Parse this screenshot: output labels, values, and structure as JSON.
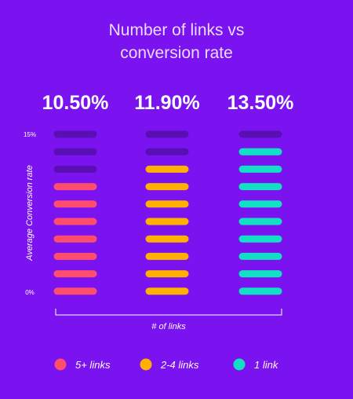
{
  "chart_data": {
    "type": "bar",
    "title_lines": [
      "Number of links vs",
      "conversion rate"
    ],
    "ylabel": "Average Conversion rate",
    "xlabel": "# of links",
    "y_ticks": [
      "15%",
      "0%"
    ],
    "ylim": [
      0,
      15
    ],
    "segments_total": 10,
    "categories": [
      "5+ links",
      "2-4 links",
      "1 link"
    ],
    "series": [
      {
        "name": "5+ links",
        "value": 10.5,
        "value_label": "10.50%",
        "filled_segments": 7,
        "color": "#ff4d6d"
      },
      {
        "name": "2-4 links",
        "value": 11.9,
        "value_label": "11.90%",
        "filled_segments": 8,
        "color": "#ffb000"
      },
      {
        "name": "1 link",
        "value": 13.5,
        "value_label": "13.50%",
        "filled_segments": 9,
        "color": "#12e0c4"
      }
    ],
    "empty_color": "#5a0fb4",
    "background": "#7b12f0",
    "legend_position": "bottom"
  }
}
